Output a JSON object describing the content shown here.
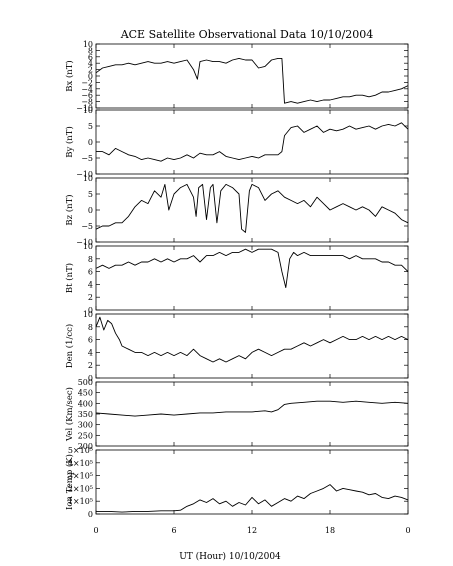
{
  "chart_data": {
    "type": "line",
    "title": "ACE Satellite Observational Data   10/10/2004",
    "xlabel": "UT (Hour)   10/10/2004",
    "x_ticks": [
      "0",
      "6",
      "12",
      "18",
      "0"
    ],
    "x_range_hours": [
      0,
      24
    ],
    "grid": false,
    "legend": "none",
    "line_color": "#000000",
    "panels": [
      {
        "ylabel": "Bx (nT)",
        "ylim": [
          -10,
          10
        ],
        "y_ticks": [
          -10,
          -8,
          -6,
          -4,
          -2,
          0,
          2,
          4,
          6,
          8,
          10
        ],
        "y_tick_labels": [
          "−10",
          "−8",
          "−6",
          "−4",
          "−2",
          "0",
          "2",
          "4",
          "6",
          "8",
          "10"
        ],
        "series": [
          {
            "x": [
              0,
              0.5,
              1,
              1.5,
              2,
              2.5,
              3,
              3.5,
              4,
              4.5,
              5,
              5.5,
              6,
              6.5,
              7,
              7.5,
              7.8,
              8,
              8.5,
              9,
              9.5,
              10,
              10.5,
              11,
              11.5,
              12,
              12.5,
              13,
              13.5,
              14,
              14.3,
              14.5,
              15,
              15.5,
              16,
              16.5,
              17,
              17.5,
              18,
              18.5,
              19,
              19.5,
              20,
              20.5,
              21,
              21.5,
              22,
              22.5,
              23,
              23.5,
              24
            ],
            "y": [
              1,
              2.5,
              3,
              3.5,
              3.5,
              4,
              3.5,
              4,
              4.5,
              4,
              4,
              4.5,
              4,
              4.5,
              5,
              2,
              -1,
              4.5,
              5,
              4.5,
              4.5,
              4,
              5,
              5.5,
              5,
              5,
              2.5,
              3,
              5,
              5.5,
              5.5,
              -8.5,
              -8,
              -8.5,
              -8,
              -7.5,
              -8,
              -7.5,
              -7.5,
              -7,
              -6.5,
              -6.5,
              -6,
              -6,
              -6.5,
              -6,
              -5,
              -5,
              -4.5,
              -4,
              -3
            ]
          }
        ]
      },
      {
        "ylabel": "By (nT)",
        "ylim": [
          -10,
          10
        ],
        "y_ticks": [
          -10,
          -5,
          0,
          5,
          10
        ],
        "y_tick_labels": [
          "−10",
          "−5",
          "0",
          "5",
          "10"
        ],
        "series": [
          {
            "x": [
              0,
              0.5,
              1,
              1.5,
              2,
              2.5,
              3,
              3.5,
              4,
              4.5,
              5,
              5.5,
              6,
              6.5,
              7,
              7.5,
              8,
              8.5,
              9,
              9.5,
              10,
              10.5,
              11,
              11.5,
              12,
              12.5,
              13,
              13.5,
              14,
              14.3,
              14.5,
              15,
              15.5,
              16,
              16.5,
              17,
              17.5,
              18,
              18.5,
              19,
              19.5,
              20,
              20.5,
              21,
              21.5,
              22,
              22.5,
              23,
              23.5,
              24
            ],
            "y": [
              -3,
              -3,
              -4,
              -2,
              -3,
              -4,
              -4.5,
              -5.5,
              -5,
              -5.5,
              -6,
              -5,
              -5.5,
              -5,
              -4,
              -5,
              -3.5,
              -4,
              -4,
              -3,
              -4.5,
              -5,
              -5.5,
              -5,
              -4.5,
              -5,
              -4,
              -4,
              -4,
              -3,
              2,
              4.5,
              5,
              3,
              4,
              5,
              3,
              4,
              3.5,
              4,
              5,
              4,
              4.5,
              5,
              4,
              5,
              5.5,
              5,
              6,
              4
            ]
          }
        ]
      },
      {
        "ylabel": "Bz (nT)",
        "ylim": [
          -10,
          10
        ],
        "y_ticks": [
          -10,
          -5,
          0,
          5,
          10
        ],
        "y_tick_labels": [
          "−10",
          "−5",
          "0",
          "5",
          "10"
        ],
        "series": [
          {
            "x": [
              0,
              0.5,
              1,
              1.5,
              2,
              2.5,
              3,
              3.5,
              4,
              4.5,
              5,
              5.3,
              5.6,
              6,
              6.5,
              7,
              7.5,
              7.7,
              7.9,
              8.2,
              8.5,
              8.8,
              9,
              9.3,
              9.6,
              10,
              10.5,
              11,
              11.2,
              11.5,
              11.8,
              12,
              12.5,
              13,
              13.5,
              14,
              14.5,
              15,
              15.5,
              16,
              16.5,
              17,
              17.5,
              18,
              18.5,
              19,
              19.5,
              20,
              20.5,
              21,
              21.5,
              22,
              22.5,
              23,
              23.5,
              24
            ],
            "y": [
              -6,
              -5,
              -5,
              -4,
              -4,
              -2,
              1,
              3,
              2,
              6,
              4,
              8,
              0,
              5,
              7,
              8,
              4,
              -2,
              7,
              8,
              -3,
              7,
              8,
              -4,
              6,
              8,
              7,
              5,
              -6,
              -7,
              6,
              8,
              7,
              3,
              5,
              6,
              4,
              3,
              2,
              3,
              1,
              4,
              2,
              0,
              1,
              2,
              1,
              0,
              1,
              0,
              -2,
              1,
              0,
              -1,
              -3,
              -4
            ]
          }
        ]
      },
      {
        "ylabel": "Bt (nT)",
        "ylim": [
          0,
          10
        ],
        "y_ticks": [
          0,
          2,
          4,
          6,
          8,
          10
        ],
        "y_tick_labels": [
          "0",
          "2",
          "4",
          "6",
          "8",
          "10"
        ],
        "series": [
          {
            "x": [
              0,
              0.5,
              1,
              1.5,
              2,
              2.5,
              3,
              3.5,
              4,
              4.5,
              5,
              5.5,
              6,
              6.5,
              7,
              7.5,
              8,
              8.5,
              9,
              9.5,
              10,
              10.5,
              11,
              11.5,
              12,
              12.5,
              13,
              13.5,
              14,
              14.3,
              14.6,
              14.9,
              15.2,
              15.5,
              16,
              16.5,
              17,
              17.5,
              18,
              18.5,
              19,
              19.5,
              20,
              20.5,
              21,
              21.5,
              22,
              22.5,
              23,
              23.5,
              24
            ],
            "y": [
              6.5,
              7,
              6.5,
              7,
              7,
              7.5,
              7,
              7.5,
              7.5,
              8,
              7.5,
              8,
              7.5,
              8,
              8,
              8.5,
              7.5,
              8.5,
              8.5,
              9,
              8.5,
              9,
              9,
              9.5,
              9,
              9.5,
              9.5,
              9.5,
              9,
              6,
              3.5,
              8,
              9,
              8.5,
              9,
              8.5,
              8.5,
              8.5,
              8.5,
              8.5,
              8.5,
              8,
              8.5,
              8,
              8,
              8,
              7.5,
              7.5,
              7,
              7,
              6
            ]
          }
        ]
      },
      {
        "ylabel": "Den (1/cc)",
        "ylim": [
          0,
          10
        ],
        "y_ticks": [
          0,
          2,
          4,
          6,
          8,
          10
        ],
        "y_tick_labels": [
          "0",
          "2",
          "4",
          "6",
          "8",
          "10"
        ],
        "series": [
          {
            "x": [
              0,
              0.3,
              0.6,
              0.9,
              1.2,
              1.5,
              1.8,
              2,
              2.5,
              3,
              3.5,
              4,
              4.5,
              5,
              5.5,
              6,
              6.5,
              7,
              7.5,
              8,
              8.5,
              9,
              9.5,
              10,
              10.5,
              11,
              11.5,
              12,
              12.5,
              13,
              13.5,
              14,
              14.5,
              15,
              15.5,
              16,
              16.5,
              17,
              17.5,
              18,
              18.5,
              19,
              19.5,
              20,
              20.5,
              21,
              21.5,
              22,
              22.5,
              23,
              23.5,
              24
            ],
            "y": [
              8,
              9.5,
              7.5,
              9,
              8.5,
              7,
              6,
              5,
              4.5,
              4,
              4,
              3.5,
              4,
              3.5,
              4,
              3.5,
              4,
              3.5,
              4.5,
              3.5,
              3,
              2.5,
              3,
              2.5,
              3,
              3.5,
              3,
              4,
              4.5,
              4,
              3.5,
              4,
              4.5,
              4.5,
              5,
              5.5,
              5,
              5.5,
              6,
              5.5,
              6,
              6.5,
              6,
              6,
              6.5,
              6,
              6.5,
              6,
              6.5,
              6,
              6.5,
              6
            ]
          }
        ]
      },
      {
        "ylabel": "Vel (Km/sec)",
        "ylim": [
          200,
          500
        ],
        "y_ticks": [
          200,
          250,
          300,
          350,
          400,
          450,
          500
        ],
        "y_tick_labels": [
          "200",
          "250",
          "300",
          "350",
          "400",
          "450",
          "500"
        ],
        "series": [
          {
            "x": [
              0,
              1,
              2,
              3,
              4,
              5,
              6,
              7,
              8,
              9,
              10,
              11,
              12,
              13,
              13.5,
              14,
              14.5,
              15,
              16,
              17,
              18,
              19,
              20,
              21,
              22,
              23,
              24
            ],
            "y": [
              355,
              350,
              345,
              340,
              345,
              350,
              345,
              350,
              355,
              355,
              360,
              360,
              360,
              365,
              360,
              370,
              395,
              400,
              405,
              410,
              410,
              405,
              410,
              405,
              400,
              405,
              400
            ]
          }
        ]
      },
      {
        "ylabel": "Ion Temp (K)",
        "ylim": [
          0,
          500000
        ],
        "y_ticks": [
          0,
          100000,
          200000,
          300000,
          400000,
          500000
        ],
        "y_tick_labels": [
          "0",
          "1×10⁵",
          "2×10⁵",
          "3×10⁵",
          "4×10⁵",
          "5×10⁵"
        ],
        "series": [
          {
            "x": [
              0,
              1,
              2,
              3,
              4,
              5,
              6,
              6.5,
              7,
              7.5,
              8,
              8.5,
              9,
              9.5,
              10,
              10.5,
              11,
              11.5,
              12,
              12.5,
              13,
              13.5,
              14,
              14.5,
              15,
              15.5,
              16,
              16.5,
              17,
              17.5,
              18,
              18.5,
              19,
              19.5,
              20,
              20.5,
              21,
              21.5,
              22,
              22.5,
              23,
              23.5,
              24
            ],
            "y": [
              20000,
              20000,
              15000,
              20000,
              20000,
              25000,
              25000,
              30000,
              60000,
              80000,
              110000,
              90000,
              120000,
              80000,
              100000,
              60000,
              90000,
              70000,
              130000,
              80000,
              110000,
              60000,
              90000,
              120000,
              100000,
              140000,
              120000,
              160000,
              180000,
              200000,
              230000,
              180000,
              200000,
              190000,
              180000,
              170000,
              150000,
              160000,
              130000,
              120000,
              140000,
              130000,
              110000
            ]
          }
        ]
      }
    ]
  }
}
